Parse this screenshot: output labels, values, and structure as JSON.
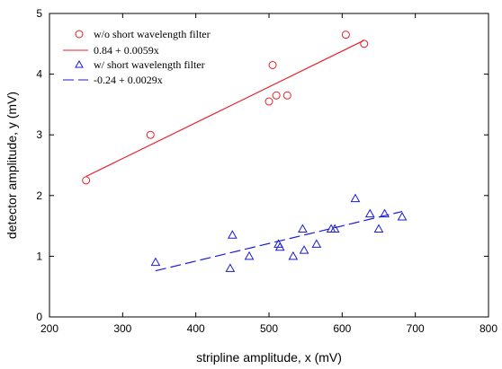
{
  "chart_data": {
    "type": "scatter",
    "xlabel": "stripline amplitude, x (mV)",
    "ylabel": "detector amplitude, y (mV)",
    "xlim": [
      200,
      800
    ],
    "ylim": [
      0,
      5
    ],
    "xticks": [
      200,
      300,
      400,
      500,
      600,
      700,
      800
    ],
    "yticks": [
      0,
      1,
      2,
      3,
      4,
      5
    ],
    "grid": false,
    "legend_position": "top-left",
    "series": [
      {
        "name": "w/o short wavelength filter",
        "marker": "circle",
        "color": "#e8202a",
        "points": [
          {
            "x": 250,
            "y": 2.25
          },
          {
            "x": 338,
            "y": 3.0
          },
          {
            "x": 500,
            "y": 3.55
          },
          {
            "x": 505,
            "y": 4.15
          },
          {
            "x": 510,
            "y": 3.65
          },
          {
            "x": 525,
            "y": 3.65
          },
          {
            "x": 605,
            "y": 4.65
          },
          {
            "x": 630,
            "y": 4.5
          }
        ]
      },
      {
        "name": "w/ short wavelength filter",
        "marker": "triangle",
        "color": "#1a1ad8",
        "points": [
          {
            "x": 345,
            "y": 0.9
          },
          {
            "x": 447,
            "y": 0.8
          },
          {
            "x": 450,
            "y": 1.35
          },
          {
            "x": 473,
            "y": 1.0
          },
          {
            "x": 513,
            "y": 1.2
          },
          {
            "x": 515,
            "y": 1.15
          },
          {
            "x": 533,
            "y": 1.0
          },
          {
            "x": 546,
            "y": 1.45
          },
          {
            "x": 548,
            "y": 1.1
          },
          {
            "x": 565,
            "y": 1.2
          },
          {
            "x": 585,
            "y": 1.45
          },
          {
            "x": 590,
            "y": 1.45
          },
          {
            "x": 618,
            "y": 1.95
          },
          {
            "x": 638,
            "y": 1.7
          },
          {
            "x": 650,
            "y": 1.45
          },
          {
            "x": 658,
            "y": 1.7
          },
          {
            "x": 682,
            "y": 1.65
          }
        ]
      }
    ],
    "fits": [
      {
        "name": "0.84 + 0.0059x",
        "intercept": 0.84,
        "slope": 0.0059,
        "x_range": [
          250,
          630
        ],
        "color": "#e8202a",
        "style": "solid"
      },
      {
        "name": "-0.24 + 0.0029x",
        "intercept": -0.24,
        "slope": 0.0029,
        "x_range": [
          345,
          682
        ],
        "color": "#1a1ad8",
        "style": "dashed"
      }
    ]
  }
}
